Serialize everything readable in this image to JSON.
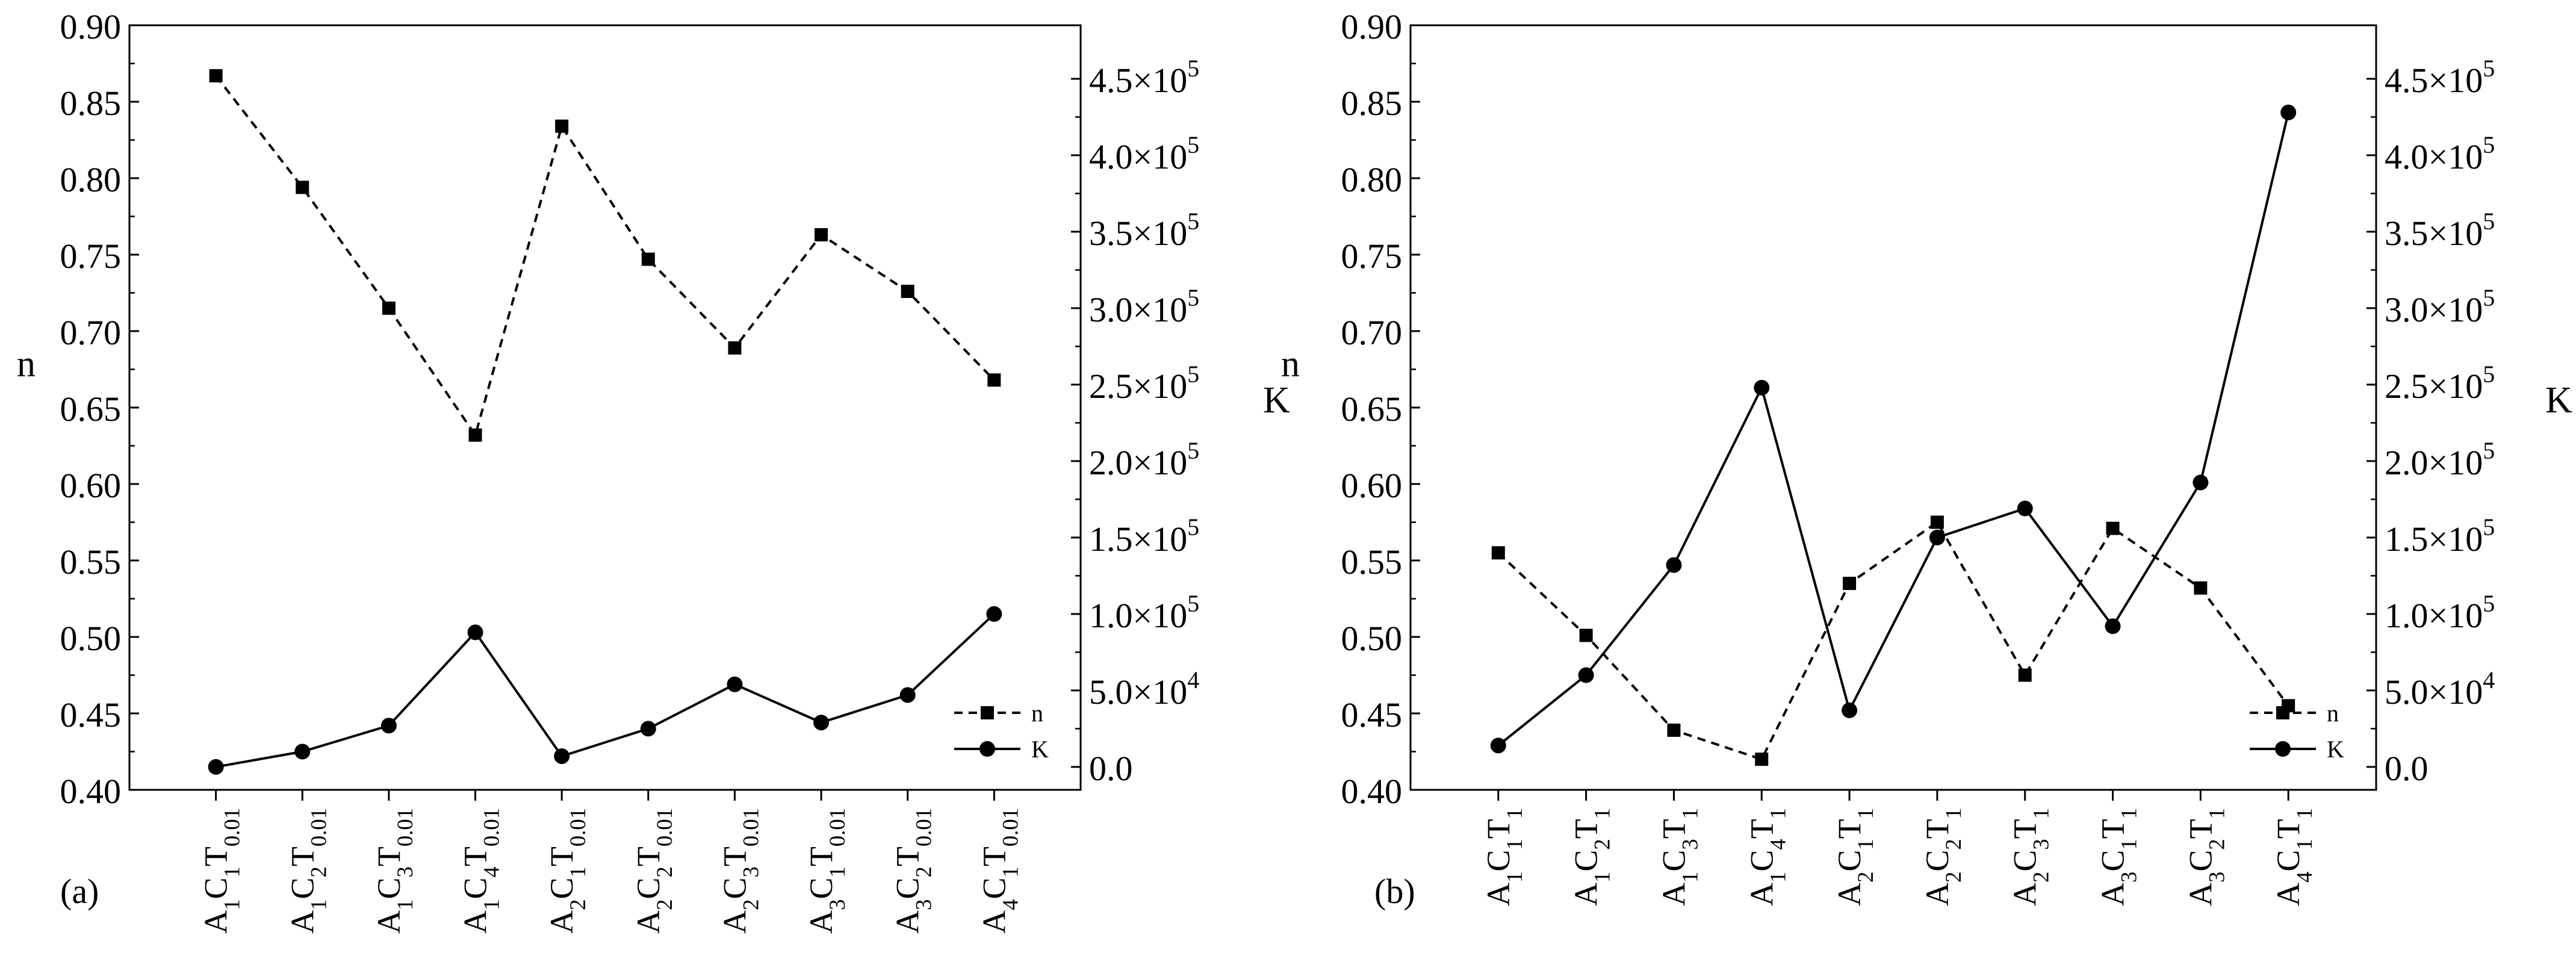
{
  "chart_data": [
    {
      "type": "line",
      "panel_label": "(a)",
      "left_axis": {
        "label": "n",
        "ylim": [
          0.4,
          0.9
        ],
        "ticks": [
          "0.40",
          "0.45",
          "0.50",
          "0.55",
          "0.60",
          "0.65",
          "0.70",
          "0.75",
          "0.80",
          "0.85",
          "0.90"
        ]
      },
      "right_axis": {
        "label": "K",
        "ylim": [
          -15000,
          485000
        ],
        "ticks": [
          {
            "mantissa": "0.0",
            "exp": ""
          },
          {
            "mantissa": "5.0×10",
            "exp": "4"
          },
          {
            "mantissa": "1.0×10",
            "exp": "5"
          },
          {
            "mantissa": "1.5×10",
            "exp": "5"
          },
          {
            "mantissa": "2.0×10",
            "exp": "5"
          },
          {
            "mantissa": "2.5×10",
            "exp": "5"
          },
          {
            "mantissa": "3.0×10",
            "exp": "5"
          },
          {
            "mantissa": "3.5×10",
            "exp": "5"
          },
          {
            "mantissa": "4.0×10",
            "exp": "5"
          },
          {
            "mantissa": "4.5×10",
            "exp": "5"
          }
        ]
      },
      "categories": [
        [
          [
            "A",
            "1"
          ],
          [
            "C",
            "1"
          ],
          [
            "T",
            "0.01"
          ]
        ],
        [
          [
            "A",
            "1"
          ],
          [
            "C",
            "2"
          ],
          [
            "T",
            "0.01"
          ]
        ],
        [
          [
            "A",
            "1"
          ],
          [
            "C",
            "3"
          ],
          [
            "T",
            "0.01"
          ]
        ],
        [
          [
            "A",
            "1"
          ],
          [
            "C",
            "4"
          ],
          [
            "T",
            "0.01"
          ]
        ],
        [
          [
            "A",
            "2"
          ],
          [
            "C",
            "1"
          ],
          [
            "T",
            "0.01"
          ]
        ],
        [
          [
            "A",
            "2"
          ],
          [
            "C",
            "2"
          ],
          [
            "T",
            "0.01"
          ]
        ],
        [
          [
            "A",
            "2"
          ],
          [
            "C",
            "3"
          ],
          [
            "T",
            "0.01"
          ]
        ],
        [
          [
            "A",
            "3"
          ],
          [
            "C",
            "1"
          ],
          [
            "T",
            "0.01"
          ]
        ],
        [
          [
            "A",
            "3"
          ],
          [
            "C",
            "2"
          ],
          [
            "T",
            "0.01"
          ]
        ],
        [
          [
            "A",
            "4"
          ],
          [
            "C",
            "1"
          ],
          [
            "T",
            "0.01"
          ]
        ]
      ],
      "series": [
        {
          "name": "n",
          "axis": "left",
          "style": "dashed",
          "marker": "square",
          "values": [
            0.867,
            0.794,
            0.715,
            0.632,
            0.834,
            0.747,
            0.689,
            0.763,
            0.726,
            0.668
          ]
        },
        {
          "name": "K",
          "axis": "right",
          "style": "solid",
          "marker": "circle",
          "values": [
            0,
            10000,
            27000,
            88000,
            7000,
            25000,
            54000,
            29000,
            47000,
            100000
          ]
        }
      ],
      "legend": {
        "position": "bottom-right",
        "entries": [
          "n",
          "K"
        ]
      }
    },
    {
      "type": "line",
      "panel_label": "(b)",
      "left_axis": {
        "label": "n",
        "ylim": [
          0.4,
          0.9
        ],
        "ticks": [
          "0.40",
          "0.45",
          "0.50",
          "0.55",
          "0.60",
          "0.65",
          "0.70",
          "0.75",
          "0.80",
          "0.85",
          "0.90"
        ]
      },
      "right_axis": {
        "label": "K",
        "ylim": [
          -15000,
          485000
        ],
        "ticks": [
          {
            "mantissa": "0.0",
            "exp": ""
          },
          {
            "mantissa": "5.0×10",
            "exp": "4"
          },
          {
            "mantissa": "1.0×10",
            "exp": "5"
          },
          {
            "mantissa": "1.5×10",
            "exp": "5"
          },
          {
            "mantissa": "2.0×10",
            "exp": "5"
          },
          {
            "mantissa": "2.5×10",
            "exp": "5"
          },
          {
            "mantissa": "3.0×10",
            "exp": "5"
          },
          {
            "mantissa": "3.5×10",
            "exp": "5"
          },
          {
            "mantissa": "4.0×10",
            "exp": "5"
          },
          {
            "mantissa": "4.5×10",
            "exp": "5"
          }
        ]
      },
      "categories": [
        [
          [
            "A",
            "1"
          ],
          [
            "C",
            "1"
          ],
          [
            "T",
            "1"
          ]
        ],
        [
          [
            "A",
            "1"
          ],
          [
            "C",
            "2"
          ],
          [
            "T",
            "1"
          ]
        ],
        [
          [
            "A",
            "1"
          ],
          [
            "C",
            "3"
          ],
          [
            "T",
            "1"
          ]
        ],
        [
          [
            "A",
            "1"
          ],
          [
            "C",
            "4"
          ],
          [
            "T",
            "1"
          ]
        ],
        [
          [
            "A",
            "2"
          ],
          [
            "C",
            "1"
          ],
          [
            "T",
            "1"
          ]
        ],
        [
          [
            "A",
            "2"
          ],
          [
            "C",
            "2"
          ],
          [
            "T",
            "1"
          ]
        ],
        [
          [
            "A",
            "2"
          ],
          [
            "C",
            "3"
          ],
          [
            "T",
            "1"
          ]
        ],
        [
          [
            "A",
            "3"
          ],
          [
            "C",
            "1"
          ],
          [
            "T",
            "1"
          ]
        ],
        [
          [
            "A",
            "3"
          ],
          [
            "C",
            "2"
          ],
          [
            "T",
            "1"
          ]
        ],
        [
          [
            "A",
            "4"
          ],
          [
            "C",
            "1"
          ],
          [
            "T",
            "1"
          ]
        ]
      ],
      "series": [
        {
          "name": "n",
          "axis": "left",
          "style": "dashed",
          "marker": "square",
          "values": [
            0.555,
            0.501,
            0.439,
            0.42,
            0.535,
            0.575,
            0.475,
            0.571,
            0.532,
            0.455
          ]
        },
        {
          "name": "K",
          "axis": "right",
          "style": "solid",
          "marker": "circle",
          "values": [
            14000,
            60000,
            132000,
            248000,
            37000,
            150000,
            169000,
            92000,
            186000,
            428000
          ]
        }
      ],
      "legend": {
        "position": "bottom-right",
        "entries": [
          "n",
          "K"
        ]
      }
    }
  ]
}
